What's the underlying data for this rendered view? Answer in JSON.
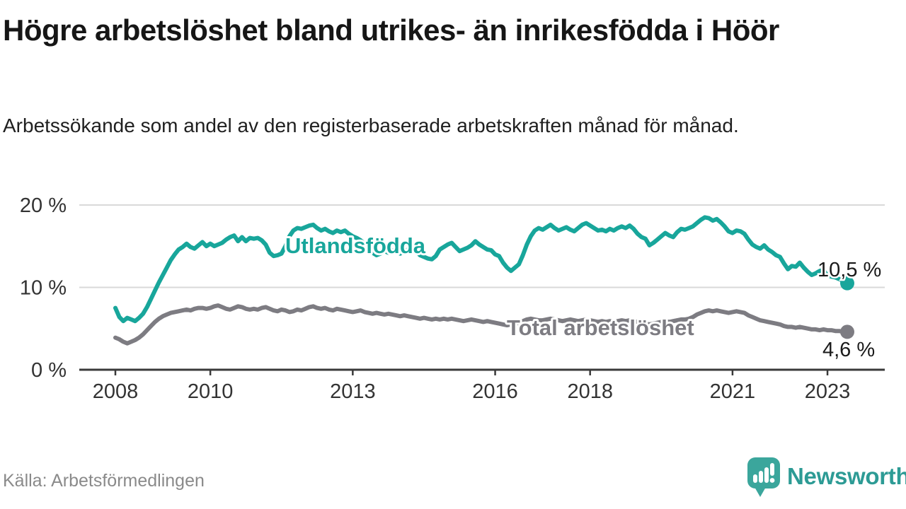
{
  "title": "Högre arbetslöshet bland utrikes- än inrikesfödda i Höör",
  "subtitle": "Arbetssökande som andel av den registerbaserade arbetskraften månad för månad.",
  "source": "Källa: Arbetsförmedlingen",
  "branding": {
    "name": "Newsworthy",
    "icon": "newsworthy-speech-bubble-bar-chart-icon"
  },
  "colors": {
    "foreign_born_line": "#18a69b",
    "total_line": "#7d7c82",
    "grid": "#d9d9d9",
    "axis": "#3a3a3a",
    "tick_label": "#333333",
    "value_label": "#1a1a1a",
    "brand_teal": "#2d9b95",
    "brand_icon_teal": "#3ba69c"
  },
  "chart_data": {
    "type": "line",
    "title": "Högre arbetslöshet bland utrikes- än inrikesfödda i Höör",
    "xlabel": "",
    "ylabel": "",
    "x_unit": "month",
    "x_start_year": 2008,
    "x_end": "2023-06",
    "ylim": [
      0,
      21.7
    ],
    "grid": "horizontal",
    "legend_position": "inline-labels",
    "x_ticks": [
      2008,
      2010,
      2013,
      2016,
      2018,
      2021,
      2023
    ],
    "x_tick_labels": [
      "2008",
      "2010",
      "2013",
      "2016",
      "2018",
      "2021",
      "2023"
    ],
    "y_ticks": [
      {
        "value": 0,
        "label": "0 %"
      },
      {
        "value": 10,
        "label": "10 %"
      },
      {
        "value": 20,
        "label": "20 %"
      }
    ],
    "series": [
      {
        "name": "Utlandsfödda",
        "color": "#18a69b",
        "end_value": 10.5,
        "end_label": "10,5 %",
        "values": [
          7.5,
          6.4,
          5.9,
          6.3,
          6.1,
          5.9,
          6.3,
          6.8,
          7.6,
          8.6,
          9.6,
          10.6,
          11.5,
          12.4,
          13.3,
          14.0,
          14.6,
          14.9,
          15.3,
          14.9,
          14.7,
          15.1,
          15.5,
          15.0,
          15.3,
          15.0,
          15.2,
          15.4,
          15.8,
          16.1,
          16.3,
          15.6,
          16.1,
          15.6,
          16.0,
          15.9,
          16.0,
          15.7,
          15.2,
          14.2,
          13.8,
          13.9,
          14.1,
          15.0,
          16.2,
          16.9,
          17.2,
          17.1,
          17.3,
          17.5,
          17.6,
          17.2,
          16.9,
          17.1,
          16.8,
          16.6,
          16.9,
          16.7,
          16.9,
          16.5,
          16.2,
          16.0,
          15.7,
          15.3,
          14.8,
          14.2,
          13.9,
          14.1,
          14.4,
          14.2,
          14.5,
          14.3,
          14.1,
          14.4,
          14.6,
          14.3,
          14.4,
          13.9,
          13.7,
          13.5,
          13.4,
          13.8,
          14.6,
          14.9,
          15.2,
          15.4,
          14.9,
          14.4,
          14.6,
          14.8,
          15.1,
          15.6,
          15.2,
          14.9,
          14.6,
          14.5,
          14.0,
          13.8,
          13.0,
          12.4,
          12.0,
          12.4,
          12.8,
          13.9,
          15.2,
          16.2,
          16.9,
          17.2,
          17.0,
          17.3,
          17.6,
          17.2,
          16.9,
          17.1,
          17.3,
          17.0,
          16.8,
          17.2,
          17.6,
          17.8,
          17.5,
          17.2,
          16.9,
          17.0,
          16.8,
          17.1,
          16.9,
          17.2,
          17.4,
          17.2,
          17.5,
          17.1,
          16.5,
          16.1,
          15.9,
          15.1,
          15.4,
          15.8,
          16.2,
          16.6,
          16.3,
          16.1,
          16.7,
          17.1,
          17.0,
          17.2,
          17.4,
          17.8,
          18.2,
          18.5,
          18.4,
          18.1,
          18.3,
          17.9,
          17.4,
          16.8,
          16.6,
          16.9,
          16.8,
          16.5,
          15.8,
          15.2,
          14.9,
          14.7,
          15.1,
          14.6,
          14.3,
          13.9,
          13.7,
          12.9,
          12.2,
          12.6,
          12.5,
          13.0,
          12.4,
          11.9,
          11.5,
          11.7,
          12.0,
          12.1,
          11.4,
          11.3,
          11.2,
          11.0,
          10.8,
          10.5
        ]
      },
      {
        "name": "Total arbetslöshet",
        "color": "#7d7c82",
        "end_value": 4.6,
        "end_label": "4,6 %",
        "values": [
          3.9,
          3.7,
          3.4,
          3.2,
          3.4,
          3.6,
          3.9,
          4.3,
          4.8,
          5.3,
          5.8,
          6.2,
          6.5,
          6.7,
          6.9,
          7.0,
          7.1,
          7.2,
          7.3,
          7.2,
          7.4,
          7.5,
          7.5,
          7.4,
          7.5,
          7.7,
          7.8,
          7.6,
          7.4,
          7.3,
          7.5,
          7.7,
          7.6,
          7.4,
          7.3,
          7.4,
          7.3,
          7.5,
          7.6,
          7.4,
          7.2,
          7.1,
          7.3,
          7.2,
          7.0,
          7.1,
          7.3,
          7.2,
          7.4,
          7.6,
          7.7,
          7.5,
          7.4,
          7.5,
          7.3,
          7.2,
          7.4,
          7.3,
          7.2,
          7.1,
          7.0,
          7.1,
          7.2,
          7.0,
          6.9,
          6.8,
          6.9,
          6.8,
          6.7,
          6.8,
          6.7,
          6.6,
          6.5,
          6.6,
          6.5,
          6.4,
          6.3,
          6.2,
          6.3,
          6.2,
          6.1,
          6.2,
          6.1,
          6.2,
          6.1,
          6.2,
          6.1,
          6.0,
          5.9,
          6.0,
          6.1,
          6.0,
          5.9,
          5.8,
          5.9,
          5.8,
          5.7,
          5.6,
          5.5,
          5.4,
          5.5,
          5.6,
          5.7,
          5.9,
          6.1,
          6.2,
          6.1,
          6.0,
          6.0,
          6.1,
          6.2,
          6.1,
          6.0,
          5.9,
          6.0,
          6.1,
          6.0,
          5.9,
          6.0,
          6.1,
          6.0,
          5.9,
          5.8,
          5.9,
          5.8,
          5.9,
          5.8,
          5.9,
          6.0,
          5.9,
          6.0,
          5.9,
          5.8,
          5.7,
          5.6,
          5.5,
          5.6,
          5.7,
          5.8,
          5.9,
          5.8,
          5.9,
          6.0,
          6.1,
          6.1,
          6.2,
          6.4,
          6.7,
          6.9,
          7.1,
          7.2,
          7.1,
          7.2,
          7.1,
          7.0,
          6.9,
          7.0,
          7.1,
          7.0,
          6.9,
          6.6,
          6.4,
          6.2,
          6.0,
          5.9,
          5.8,
          5.7,
          5.6,
          5.5,
          5.3,
          5.2,
          5.2,
          5.1,
          5.2,
          5.1,
          5.0,
          4.9,
          4.9,
          4.8,
          4.9,
          4.8,
          4.8,
          4.7,
          4.7,
          4.6,
          4.6
        ]
      }
    ]
  }
}
